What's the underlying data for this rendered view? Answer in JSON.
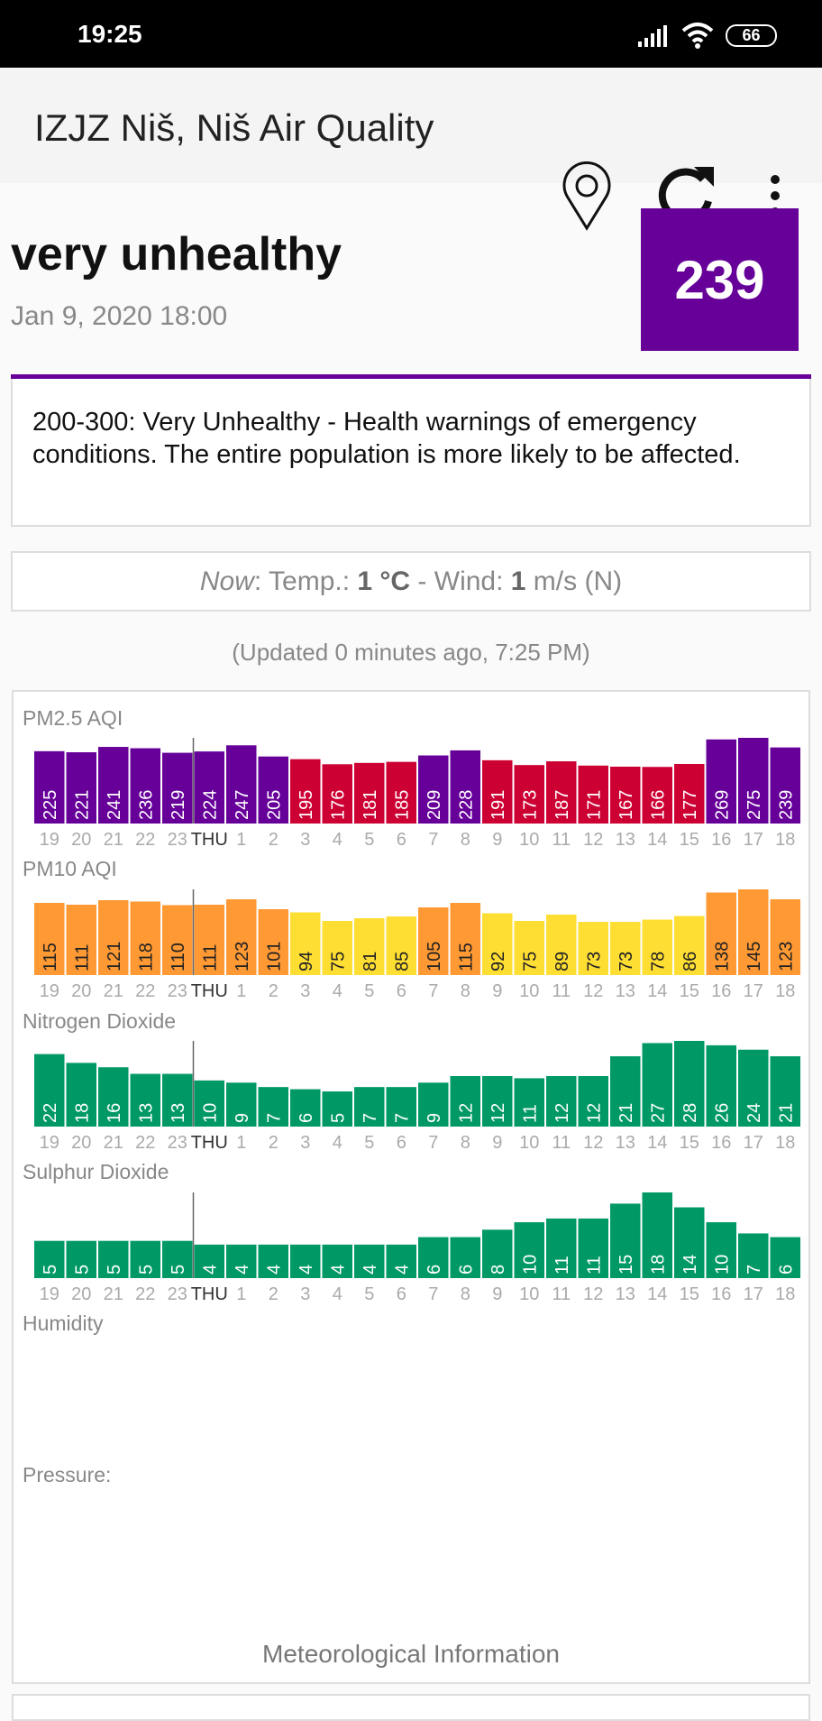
{
  "status_bar": {
    "time": "19:25",
    "battery": "66",
    "icons": [
      "signal-icon",
      "wifi-icon",
      "battery-icon"
    ]
  },
  "toolbar": {
    "title": "IZJZ Niš, Niš Air Quality",
    "icons": [
      "location-pin-icon",
      "refresh-icon",
      "more-vert-icon"
    ]
  },
  "summary": {
    "category": "very unhealthy",
    "date": "Jan 9, 2020 18:00",
    "aqi": "239",
    "color": "#660099"
  },
  "description": "200-300: Very Unhealthy - Health warnings of emergency conditions. The entire population is more likely to be affected.",
  "now": {
    "prefix": "Now",
    "temp_label": ": Temp.: ",
    "temp": "1 °C",
    "wind_label": " - Wind: ",
    "wind": "1",
    "wind_unit": " m/s (N)"
  },
  "updated": "(Updated 0 minutes ago, 7:25 PM)",
  "colors": {
    "purple": "#660099",
    "red": "#cc0033",
    "orange": "#ff9933",
    "yellow": "#ffde33",
    "green": "#009966"
  },
  "chart_data": [
    {
      "type": "bar",
      "title": "PM2.5 AQI",
      "categories": [
        "19",
        "20",
        "21",
        "22",
        "23",
        "THU",
        "1",
        "2",
        "3",
        "4",
        "5",
        "6",
        "7",
        "8",
        "9",
        "10",
        "11",
        "12",
        "13",
        "14",
        "15",
        "16",
        "17",
        "18"
      ],
      "values": [
        225,
        221,
        241,
        236,
        219,
        224,
        247,
        205,
        195,
        176,
        181,
        185,
        209,
        228,
        191,
        173,
        187,
        171,
        167,
        166,
        177,
        269,
        275,
        239
      ],
      "ylim": [
        -46,
        275
      ]
    },
    {
      "type": "bar",
      "title": "PM10 AQI",
      "categories": [
        "19",
        "20",
        "21",
        "22",
        "23",
        "THU",
        "1",
        "2",
        "3",
        "4",
        "5",
        "6",
        "7",
        "8",
        "9",
        "10",
        "11",
        "12",
        "13",
        "14",
        "15",
        "16",
        "17",
        "18"
      ],
      "values": [
        115,
        111,
        121,
        118,
        110,
        111,
        123,
        101,
        94,
        75,
        81,
        85,
        105,
        115,
        92,
        75,
        89,
        73,
        73,
        78,
        86,
        138,
        145,
        123
      ],
      "ylim": [
        -45,
        145
      ]
    },
    {
      "type": "bar",
      "title": "Nitrogen Dioxide",
      "categories": [
        "19",
        "20",
        "21",
        "22",
        "23",
        "THU",
        "1",
        "2",
        "3",
        "4",
        "5",
        "6",
        "7",
        "8",
        "9",
        "10",
        "11",
        "12",
        "13",
        "14",
        "15",
        "16",
        "17",
        "18"
      ],
      "values": [
        22,
        18,
        16,
        13,
        13,
        10,
        9,
        7,
        6,
        5,
        7,
        7,
        9,
        12,
        12,
        11,
        12,
        12,
        21,
        27,
        28,
        26,
        24,
        21
      ],
      "ylim": [
        -11,
        28
      ]
    },
    {
      "type": "bar",
      "title": "Sulphur Dioxide",
      "categories": [
        "19",
        "20",
        "21",
        "22",
        "23",
        "THU",
        "1",
        "2",
        "3",
        "4",
        "5",
        "6",
        "7",
        "8",
        "9",
        "10",
        "11",
        "12",
        "13",
        "14",
        "15",
        "16",
        "17",
        "18"
      ],
      "values": [
        5,
        5,
        5,
        5,
        5,
        4,
        4,
        4,
        4,
        4,
        4,
        4,
        6,
        6,
        8,
        10,
        11,
        11,
        15,
        18,
        14,
        10,
        7,
        6
      ],
      "ylim": [
        -5,
        18
      ]
    }
  ],
  "extra_labels": {
    "humidity": "Humidity",
    "pressure": "Pressure:",
    "meteo": "Meteorological Information"
  }
}
